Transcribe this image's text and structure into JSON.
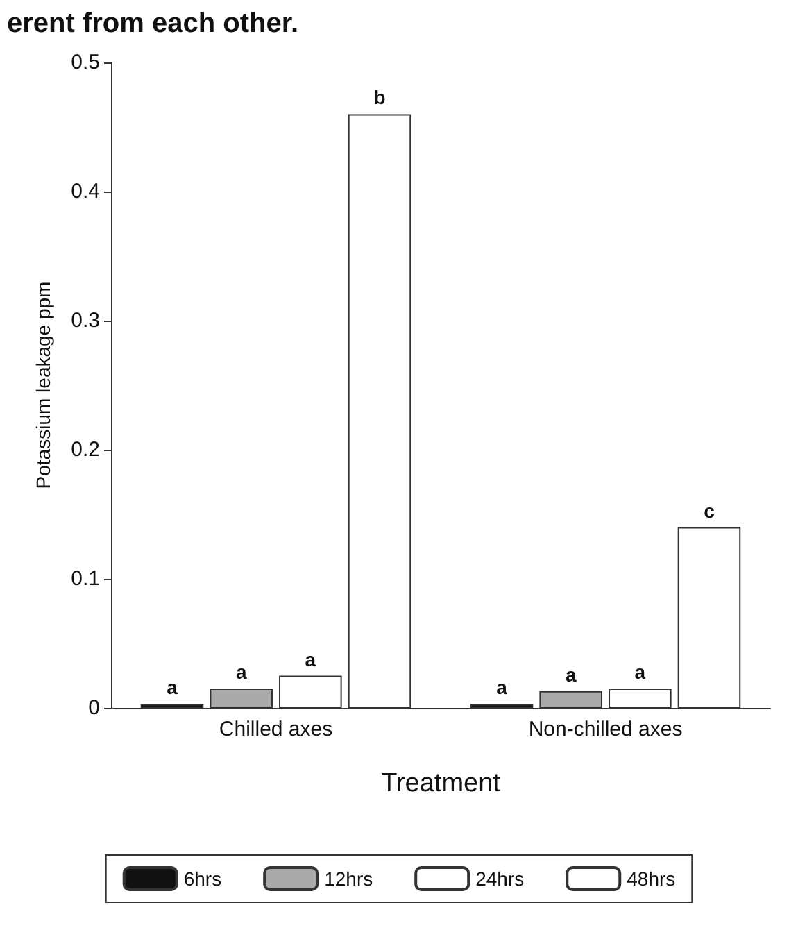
{
  "chart_data": {
    "type": "bar",
    "title": "erent from each other.",
    "xlabel": "Treatment",
    "ylabel": "Potassium leakage ppm",
    "categories": [
      "Chilled axes",
      "Non-chilled axes"
    ],
    "series": [
      {
        "name": "6hrs",
        "color": "#111111",
        "values": [
          0.003,
          0.003
        ],
        "value_labels": [
          "a",
          "a"
        ]
      },
      {
        "name": "12hrs",
        "color": "#aaaaaa",
        "values": [
          0.015,
          0.013
        ],
        "value_labels": [
          "a",
          "a"
        ]
      },
      {
        "name": "24hrs",
        "color": "#ffffff",
        "values": [
          0.025,
          0.015
        ],
        "value_labels": [
          "a",
          "a"
        ]
      },
      {
        "name": "48hrs",
        "color": "#ffffff",
        "values": [
          0.46,
          0.14
        ],
        "value_labels": [
          "b",
          "c"
        ]
      }
    ],
    "ylim": [
      0,
      0.5
    ],
    "yticks": [
      0,
      0.1,
      0.2,
      0.3,
      0.4,
      0.5
    ],
    "grid": false,
    "legend": "bottom"
  }
}
